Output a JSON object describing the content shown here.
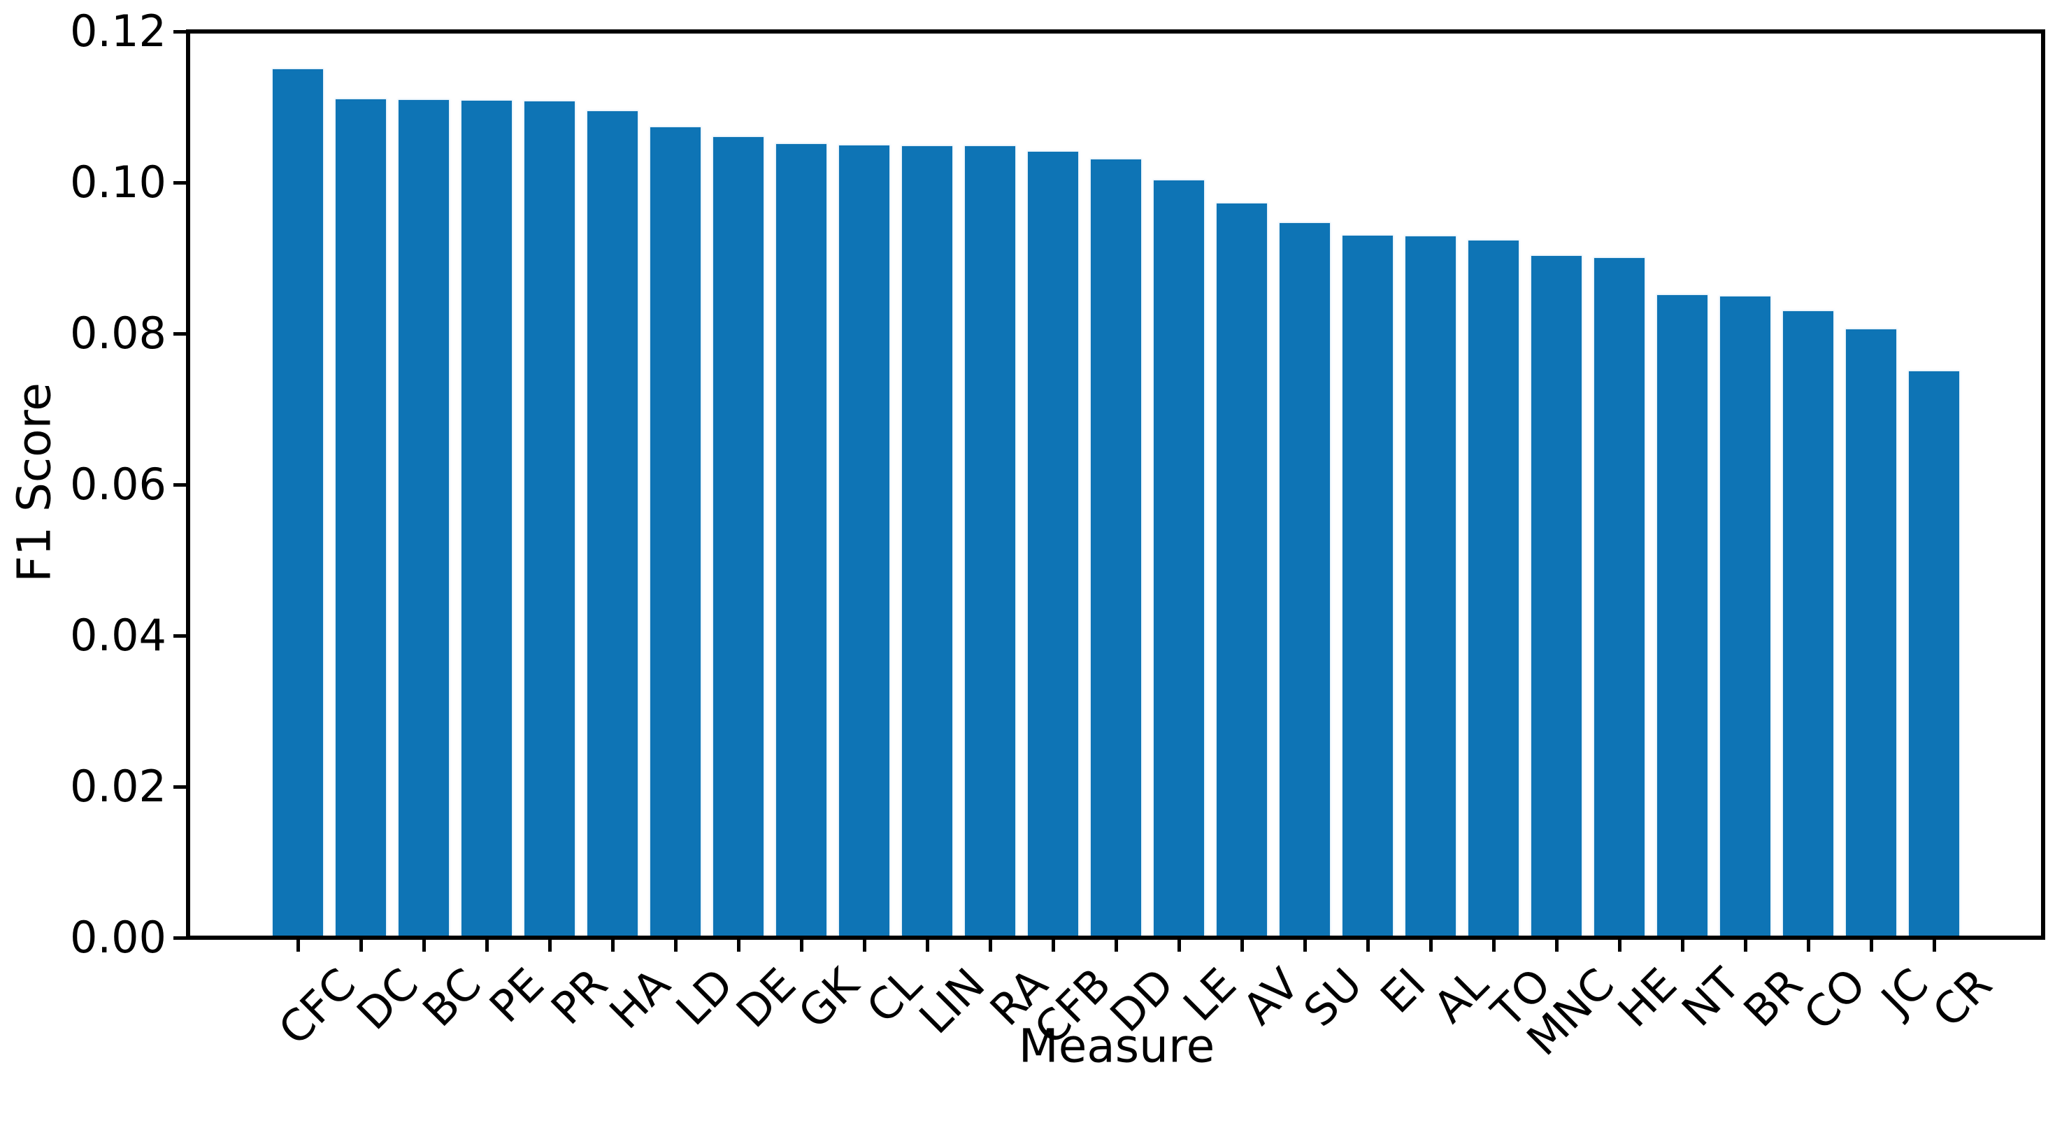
{
  "chart_data": {
    "type": "bar",
    "xlabel": "Measure",
    "ylabel": "F1 Score",
    "categories": [
      "CFC",
      "DC",
      "BC",
      "PE",
      "PR",
      "HA",
      "LD",
      "DE",
      "GK",
      "CL",
      "LIN",
      "RA",
      "CFB",
      "DD",
      "LE",
      "AV",
      "SU",
      "EI",
      "AL",
      "TO",
      "MNC",
      "HE",
      "NT",
      "BR",
      "CO",
      "JC",
      "CR"
    ],
    "values": [
      0.115,
      0.111,
      0.1109,
      0.1108,
      0.1107,
      0.1094,
      0.1073,
      0.106,
      0.1051,
      0.1049,
      0.1048,
      0.1048,
      0.1041,
      0.1031,
      0.1003,
      0.0972,
      0.0946,
      0.093,
      0.0929,
      0.0923,
      0.0903,
      0.09,
      0.0851,
      0.0849,
      0.083,
      0.0806,
      0.075
    ],
    "yticks": [
      "0.00",
      "0.02",
      "0.04",
      "0.06",
      "0.08",
      "0.10",
      "0.12"
    ],
    "ylim": [
      0,
      0.12
    ],
    "grid": false,
    "legend": "none",
    "bar_color": "#0e74b5",
    "axis_color": "#000000",
    "x_tick_rotation_deg": 45
  }
}
